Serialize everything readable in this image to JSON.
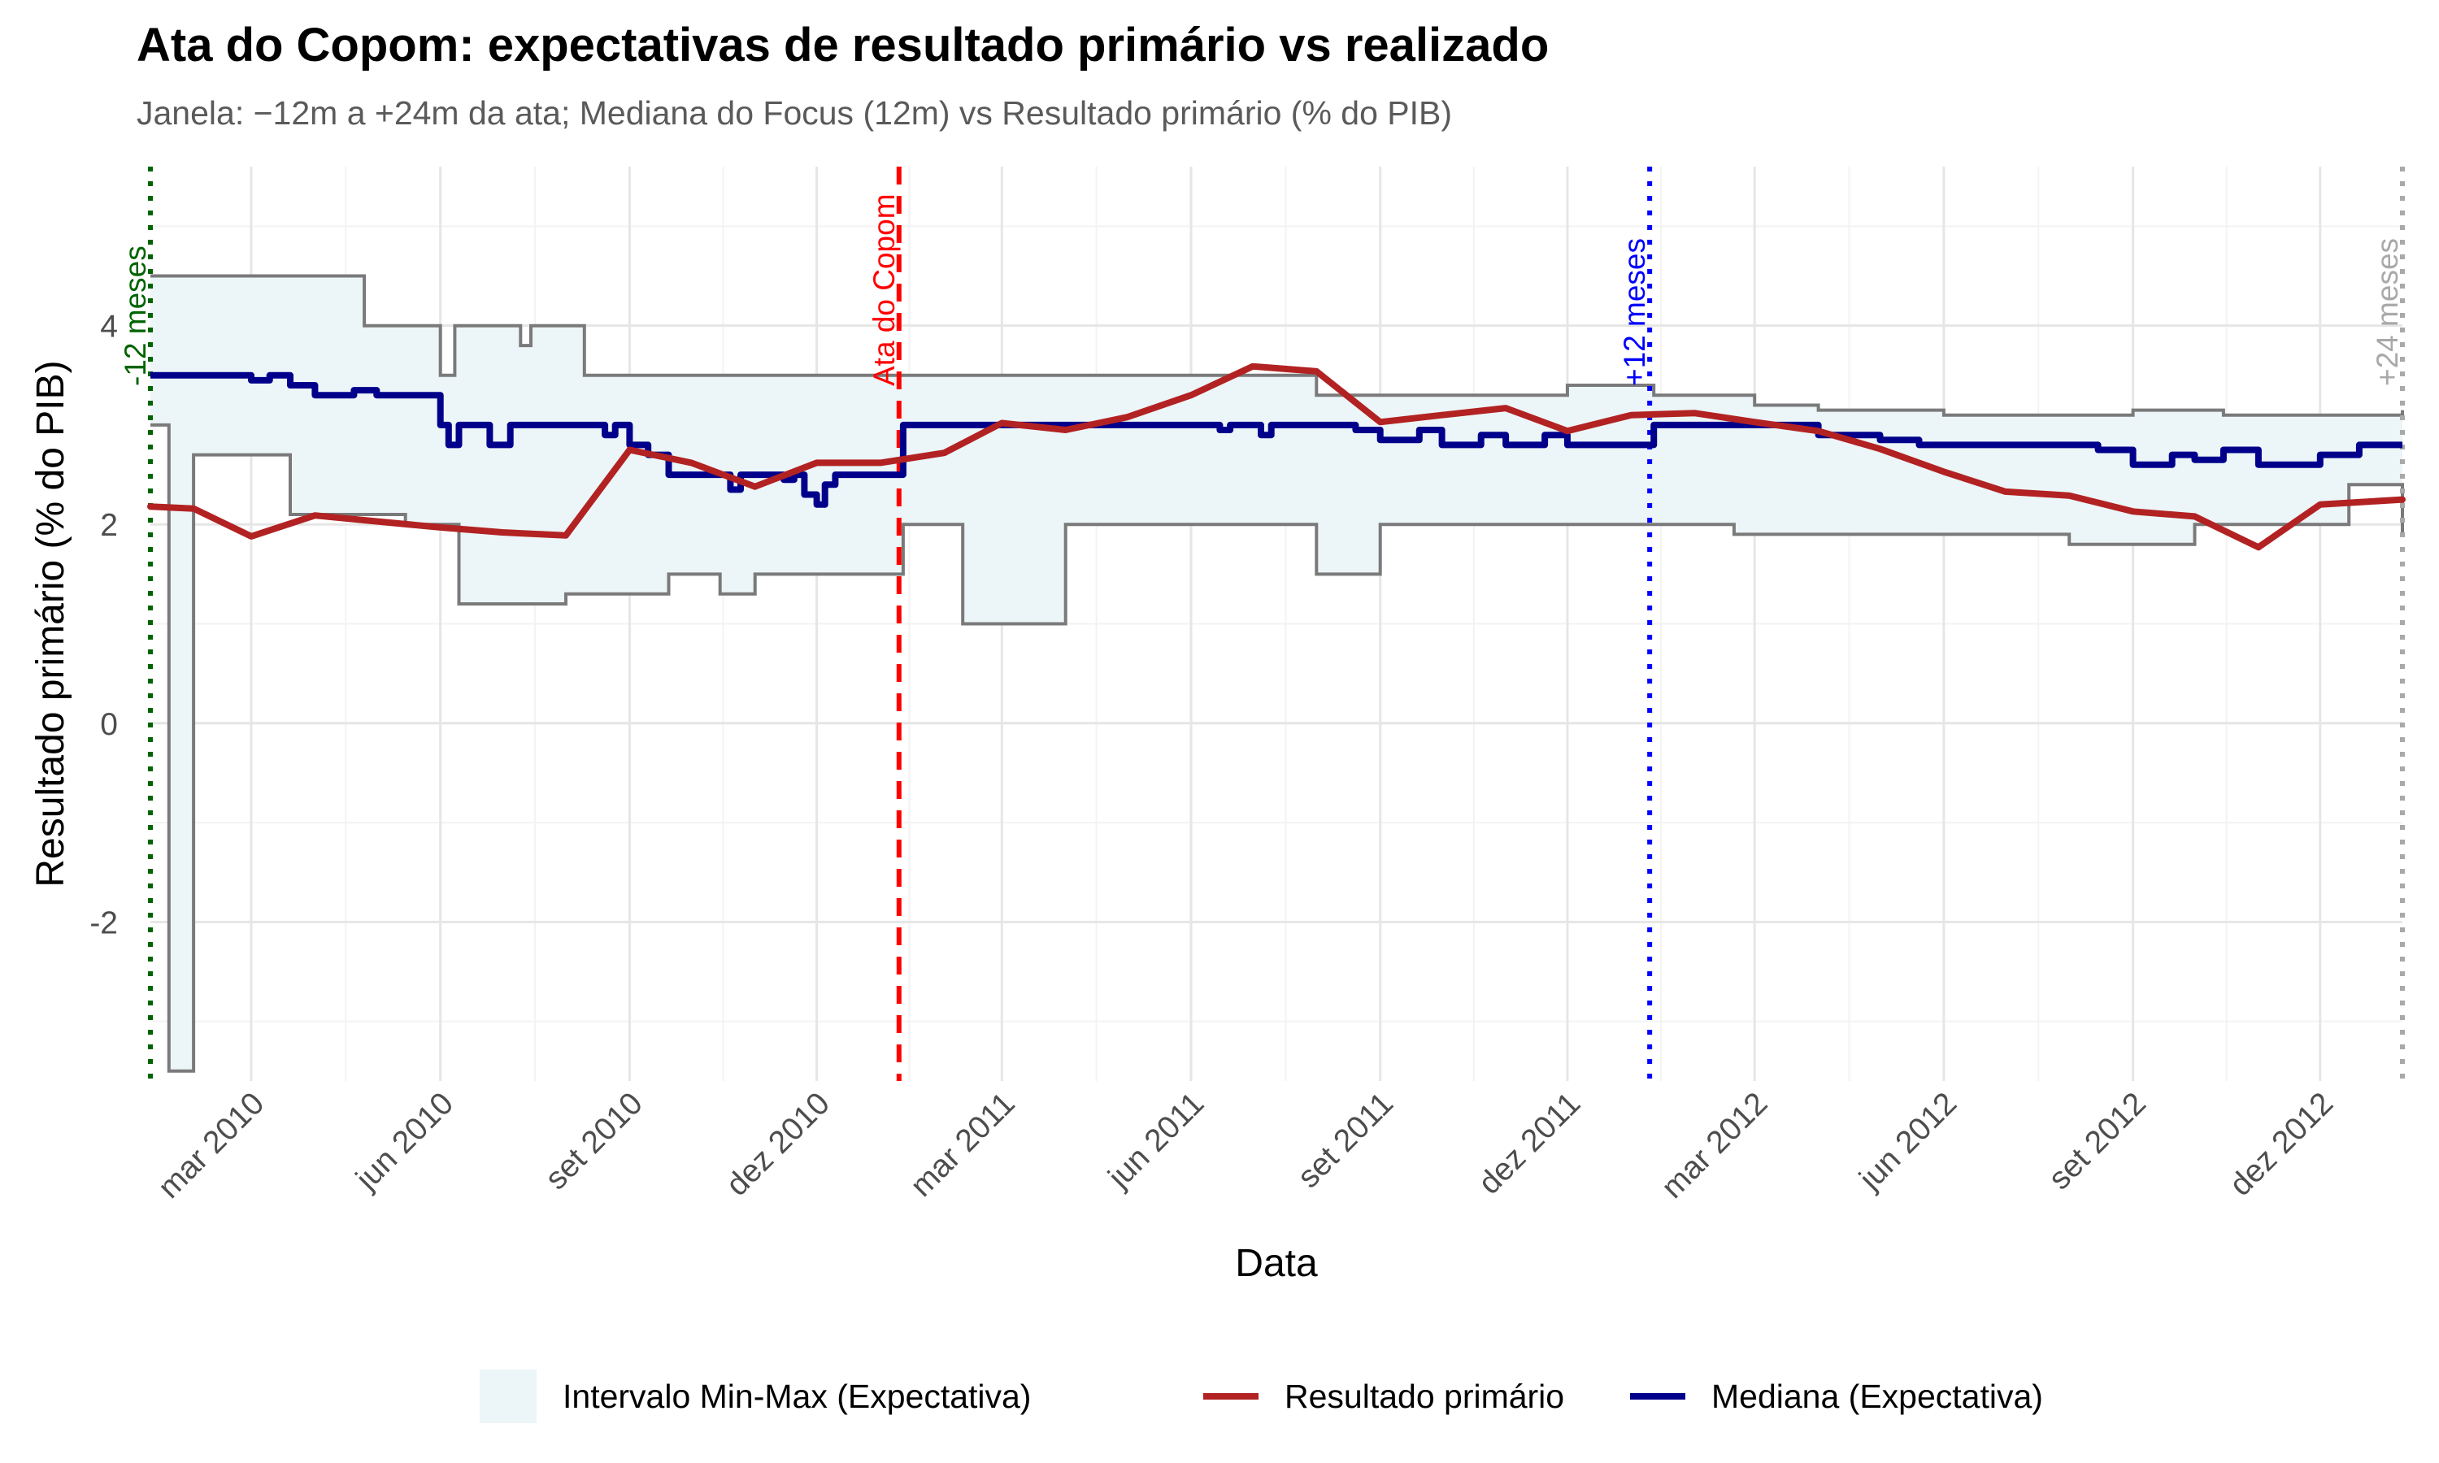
{
  "title": "Ata do Copom: expectativas de resultado primário vs realizado",
  "subtitle": "Janela: −12m a +24m da ata; Mediana do Focus (12m) vs Resultado primário (% do PIB)",
  "legend": {
    "range_label": "Intervalo Min-Max (Expectativa)",
    "actual_label": "Resultado primário",
    "median_label": "Mediana (Expectativa)"
  },
  "colors": {
    "range_fill": "#ecf5f8",
    "range_border": "#7a7a7a",
    "actual": "#b22222",
    "median": "#00008b",
    "ata_line": "#ff0000",
    "minus12_line": "#006400",
    "plus12_line": "#0000ff",
    "plus24_line": "#a9a9a9"
  },
  "chart_data": {
    "type": "line",
    "title": "Ata do Copom: expectativas de resultado primário vs realizado",
    "subtitle": "Janela: −12m a +24m da ata; Mediana do Focus (12m) vs Resultado primário (% do PIB)",
    "xlabel": "Data",
    "ylabel": "Resultado primário (% do PIB)",
    "xlim": [
      "2010-01-11",
      "2013-01-10"
    ],
    "ylim": [
      -3.6,
      5.6
    ],
    "x_ticks": [
      {
        "date": "2010-03-01",
        "label": "mar 2010"
      },
      {
        "date": "2010-06-01",
        "label": "jun 2010"
      },
      {
        "date": "2010-09-01",
        "label": "set 2010"
      },
      {
        "date": "2010-12-01",
        "label": "dez 2010"
      },
      {
        "date": "2011-03-01",
        "label": "mar 2011"
      },
      {
        "date": "2011-06-01",
        "label": "jun 2011"
      },
      {
        "date": "2011-09-01",
        "label": "set 2011"
      },
      {
        "date": "2011-12-01",
        "label": "dez 2011"
      },
      {
        "date": "2012-03-01",
        "label": "mar 2012"
      },
      {
        "date": "2012-06-01",
        "label": "jun 2012"
      },
      {
        "date": "2012-09-01",
        "label": "set 2012"
      },
      {
        "date": "2012-12-01",
        "label": "dez 2012"
      }
    ],
    "y_ticks": [
      {
        "value": -2,
        "label": "-2"
      },
      {
        "value": 0,
        "label": "0"
      },
      {
        "value": 2,
        "label": "2"
      },
      {
        "value": 4,
        "label": "4"
      }
    ],
    "grid": true,
    "legend_position": "bottom",
    "reference_lines": [
      {
        "date": "2010-01-11",
        "label": "-12 meses",
        "color": "#006400",
        "style": "dotted"
      },
      {
        "date": "2011-01-10",
        "label": "Ata do Copom",
        "color": "#ff0000",
        "style": "dashed"
      },
      {
        "date": "2012-01-10",
        "label": "+12 meses",
        "color": "#0000ff",
        "style": "dotted"
      },
      {
        "date": "2013-01-10",
        "label": "+24 meses",
        "color": "#a9a9a9",
        "style": "dotted"
      }
    ],
    "series": [
      {
        "name": "Resultado primário",
        "kind": "line",
        "color": "#b22222",
        "points": [
          [
            "2010-01-11",
            2.18
          ],
          [
            "2010-02-01",
            2.16
          ],
          [
            "2010-03-01",
            1.88
          ],
          [
            "2010-04-01",
            2.09
          ],
          [
            "2010-05-01",
            2.03
          ],
          [
            "2010-06-01",
            1.97
          ],
          [
            "2010-07-01",
            1.92
          ],
          [
            "2010-08-01",
            1.89
          ],
          [
            "2010-09-01",
            2.75
          ],
          [
            "2010-10-01",
            2.62
          ],
          [
            "2010-11-01",
            2.38
          ],
          [
            "2010-12-01",
            2.62
          ],
          [
            "2011-01-01",
            2.62
          ],
          [
            "2011-02-01",
            2.72
          ],
          [
            "2011-03-01",
            3.02
          ],
          [
            "2011-04-01",
            2.95
          ],
          [
            "2011-05-01",
            3.08
          ],
          [
            "2011-06-01",
            3.3
          ],
          [
            "2011-07-01",
            3.59
          ],
          [
            "2011-08-01",
            3.54
          ],
          [
            "2011-09-01",
            3.03
          ],
          [
            "2011-10-01",
            3.1
          ],
          [
            "2011-11-01",
            3.17
          ],
          [
            "2011-12-01",
            2.94
          ],
          [
            "2012-01-01",
            3.1
          ],
          [
            "2012-02-01",
            3.12
          ],
          [
            "2012-03-01",
            3.03
          ],
          [
            "2012-04-01",
            2.94
          ],
          [
            "2012-05-01",
            2.76
          ],
          [
            "2012-06-01",
            2.53
          ],
          [
            "2012-07-01",
            2.33
          ],
          [
            "2012-08-01",
            2.29
          ],
          [
            "2012-09-01",
            2.13
          ],
          [
            "2012-10-01",
            2.08
          ],
          [
            "2012-11-01",
            1.77
          ],
          [
            "2012-12-01",
            2.2
          ],
          [
            "2013-01-10",
            2.25
          ]
        ]
      },
      {
        "name": "Mediana (Expectativa)",
        "kind": "step",
        "color": "#00008b",
        "points": [
          [
            "2010-01-11",
            3.5
          ],
          [
            "2010-03-01",
            3.45
          ],
          [
            "2010-03-10",
            3.5
          ],
          [
            "2010-03-20",
            3.4
          ],
          [
            "2010-04-01",
            3.3
          ],
          [
            "2010-04-20",
            3.35
          ],
          [
            "2010-05-01",
            3.3
          ],
          [
            "2010-06-01",
            3.0
          ],
          [
            "2010-06-05",
            2.8
          ],
          [
            "2010-06-10",
            3.0
          ],
          [
            "2010-06-25",
            2.8
          ],
          [
            "2010-07-05",
            3.0
          ],
          [
            "2010-08-20",
            2.9
          ],
          [
            "2010-08-25",
            3.0
          ],
          [
            "2010-09-01",
            2.8
          ],
          [
            "2010-09-10",
            2.7
          ],
          [
            "2010-09-20",
            2.5
          ],
          [
            "2010-10-01",
            2.5
          ],
          [
            "2010-10-20",
            2.35
          ],
          [
            "2010-10-25",
            2.5
          ],
          [
            "2010-11-15",
            2.45
          ],
          [
            "2010-11-20",
            2.5
          ],
          [
            "2010-11-25",
            2.3
          ],
          [
            "2010-12-01",
            2.2
          ],
          [
            "2010-12-05",
            2.4
          ],
          [
            "2010-12-10",
            2.5
          ],
          [
            "2011-01-12",
            3.0
          ],
          [
            "2011-06-15",
            2.95
          ],
          [
            "2011-06-20",
            3.0
          ],
          [
            "2011-07-05",
            2.9
          ],
          [
            "2011-07-10",
            3.0
          ],
          [
            "2011-08-20",
            2.95
          ],
          [
            "2011-09-01",
            2.85
          ],
          [
            "2011-09-20",
            2.95
          ],
          [
            "2011-10-01",
            2.8
          ],
          [
            "2011-10-20",
            2.9
          ],
          [
            "2011-11-01",
            2.8
          ],
          [
            "2011-11-20",
            2.9
          ],
          [
            "2011-12-01",
            2.8
          ],
          [
            "2012-01-12",
            3.0
          ],
          [
            "2012-04-01",
            2.9
          ],
          [
            "2012-05-01",
            2.85
          ],
          [
            "2012-05-20",
            2.8
          ],
          [
            "2012-08-15",
            2.75
          ],
          [
            "2012-09-01",
            2.6
          ],
          [
            "2012-09-20",
            2.7
          ],
          [
            "2012-10-01",
            2.65
          ],
          [
            "2012-10-15",
            2.75
          ],
          [
            "2012-11-01",
            2.6
          ],
          [
            "2012-12-01",
            2.7
          ],
          [
            "2012-12-20",
            2.8
          ],
          [
            "2013-01-10",
            2.8
          ]
        ]
      },
      {
        "name": "Intervalo Min-Max (Expectativa)",
        "kind": "range",
        "color": "#ecf5f8",
        "upper": [
          [
            "2010-01-11",
            4.5
          ],
          [
            "2010-04-25",
            4.0
          ],
          [
            "2010-06-01",
            3.5
          ],
          [
            "2010-06-08",
            4.0
          ],
          [
            "2010-07-10",
            3.8
          ],
          [
            "2010-07-15",
            4.0
          ],
          [
            "2010-08-10",
            3.5
          ],
          [
            "2011-01-12",
            3.5
          ],
          [
            "2011-08-01",
            3.3
          ],
          [
            "2011-12-01",
            3.4
          ],
          [
            "2012-01-12",
            3.3
          ],
          [
            "2012-03-01",
            3.2
          ],
          [
            "2012-04-01",
            3.15
          ],
          [
            "2012-06-01",
            3.1
          ],
          [
            "2012-09-01",
            3.15
          ],
          [
            "2012-10-15",
            3.1
          ],
          [
            "2013-01-10",
            3.15
          ]
        ],
        "lower": [
          [
            "2010-01-11",
            3.0
          ],
          [
            "2010-01-20",
            -3.5
          ],
          [
            "2010-02-01",
            2.7
          ],
          [
            "2010-03-20",
            2.1
          ],
          [
            "2010-05-15",
            2.0
          ],
          [
            "2010-06-10",
            1.2
          ],
          [
            "2010-08-01",
            1.3
          ],
          [
            "2010-09-20",
            1.5
          ],
          [
            "2010-10-15",
            1.3
          ],
          [
            "2010-11-01",
            1.5
          ],
          [
            "2011-01-12",
            2.0
          ],
          [
            "2011-02-10",
            1.0
          ],
          [
            "2011-04-01",
            2.0
          ],
          [
            "2011-08-01",
            1.5
          ],
          [
            "2011-09-01",
            2.0
          ],
          [
            "2012-01-12",
            2.0
          ],
          [
            "2012-02-20",
            1.9
          ],
          [
            "2012-08-01",
            1.8
          ],
          [
            "2012-10-01",
            2.0
          ],
          [
            "2012-12-15",
            2.4
          ],
          [
            "2013-01-10",
            1.9
          ]
        ]
      }
    ]
  }
}
